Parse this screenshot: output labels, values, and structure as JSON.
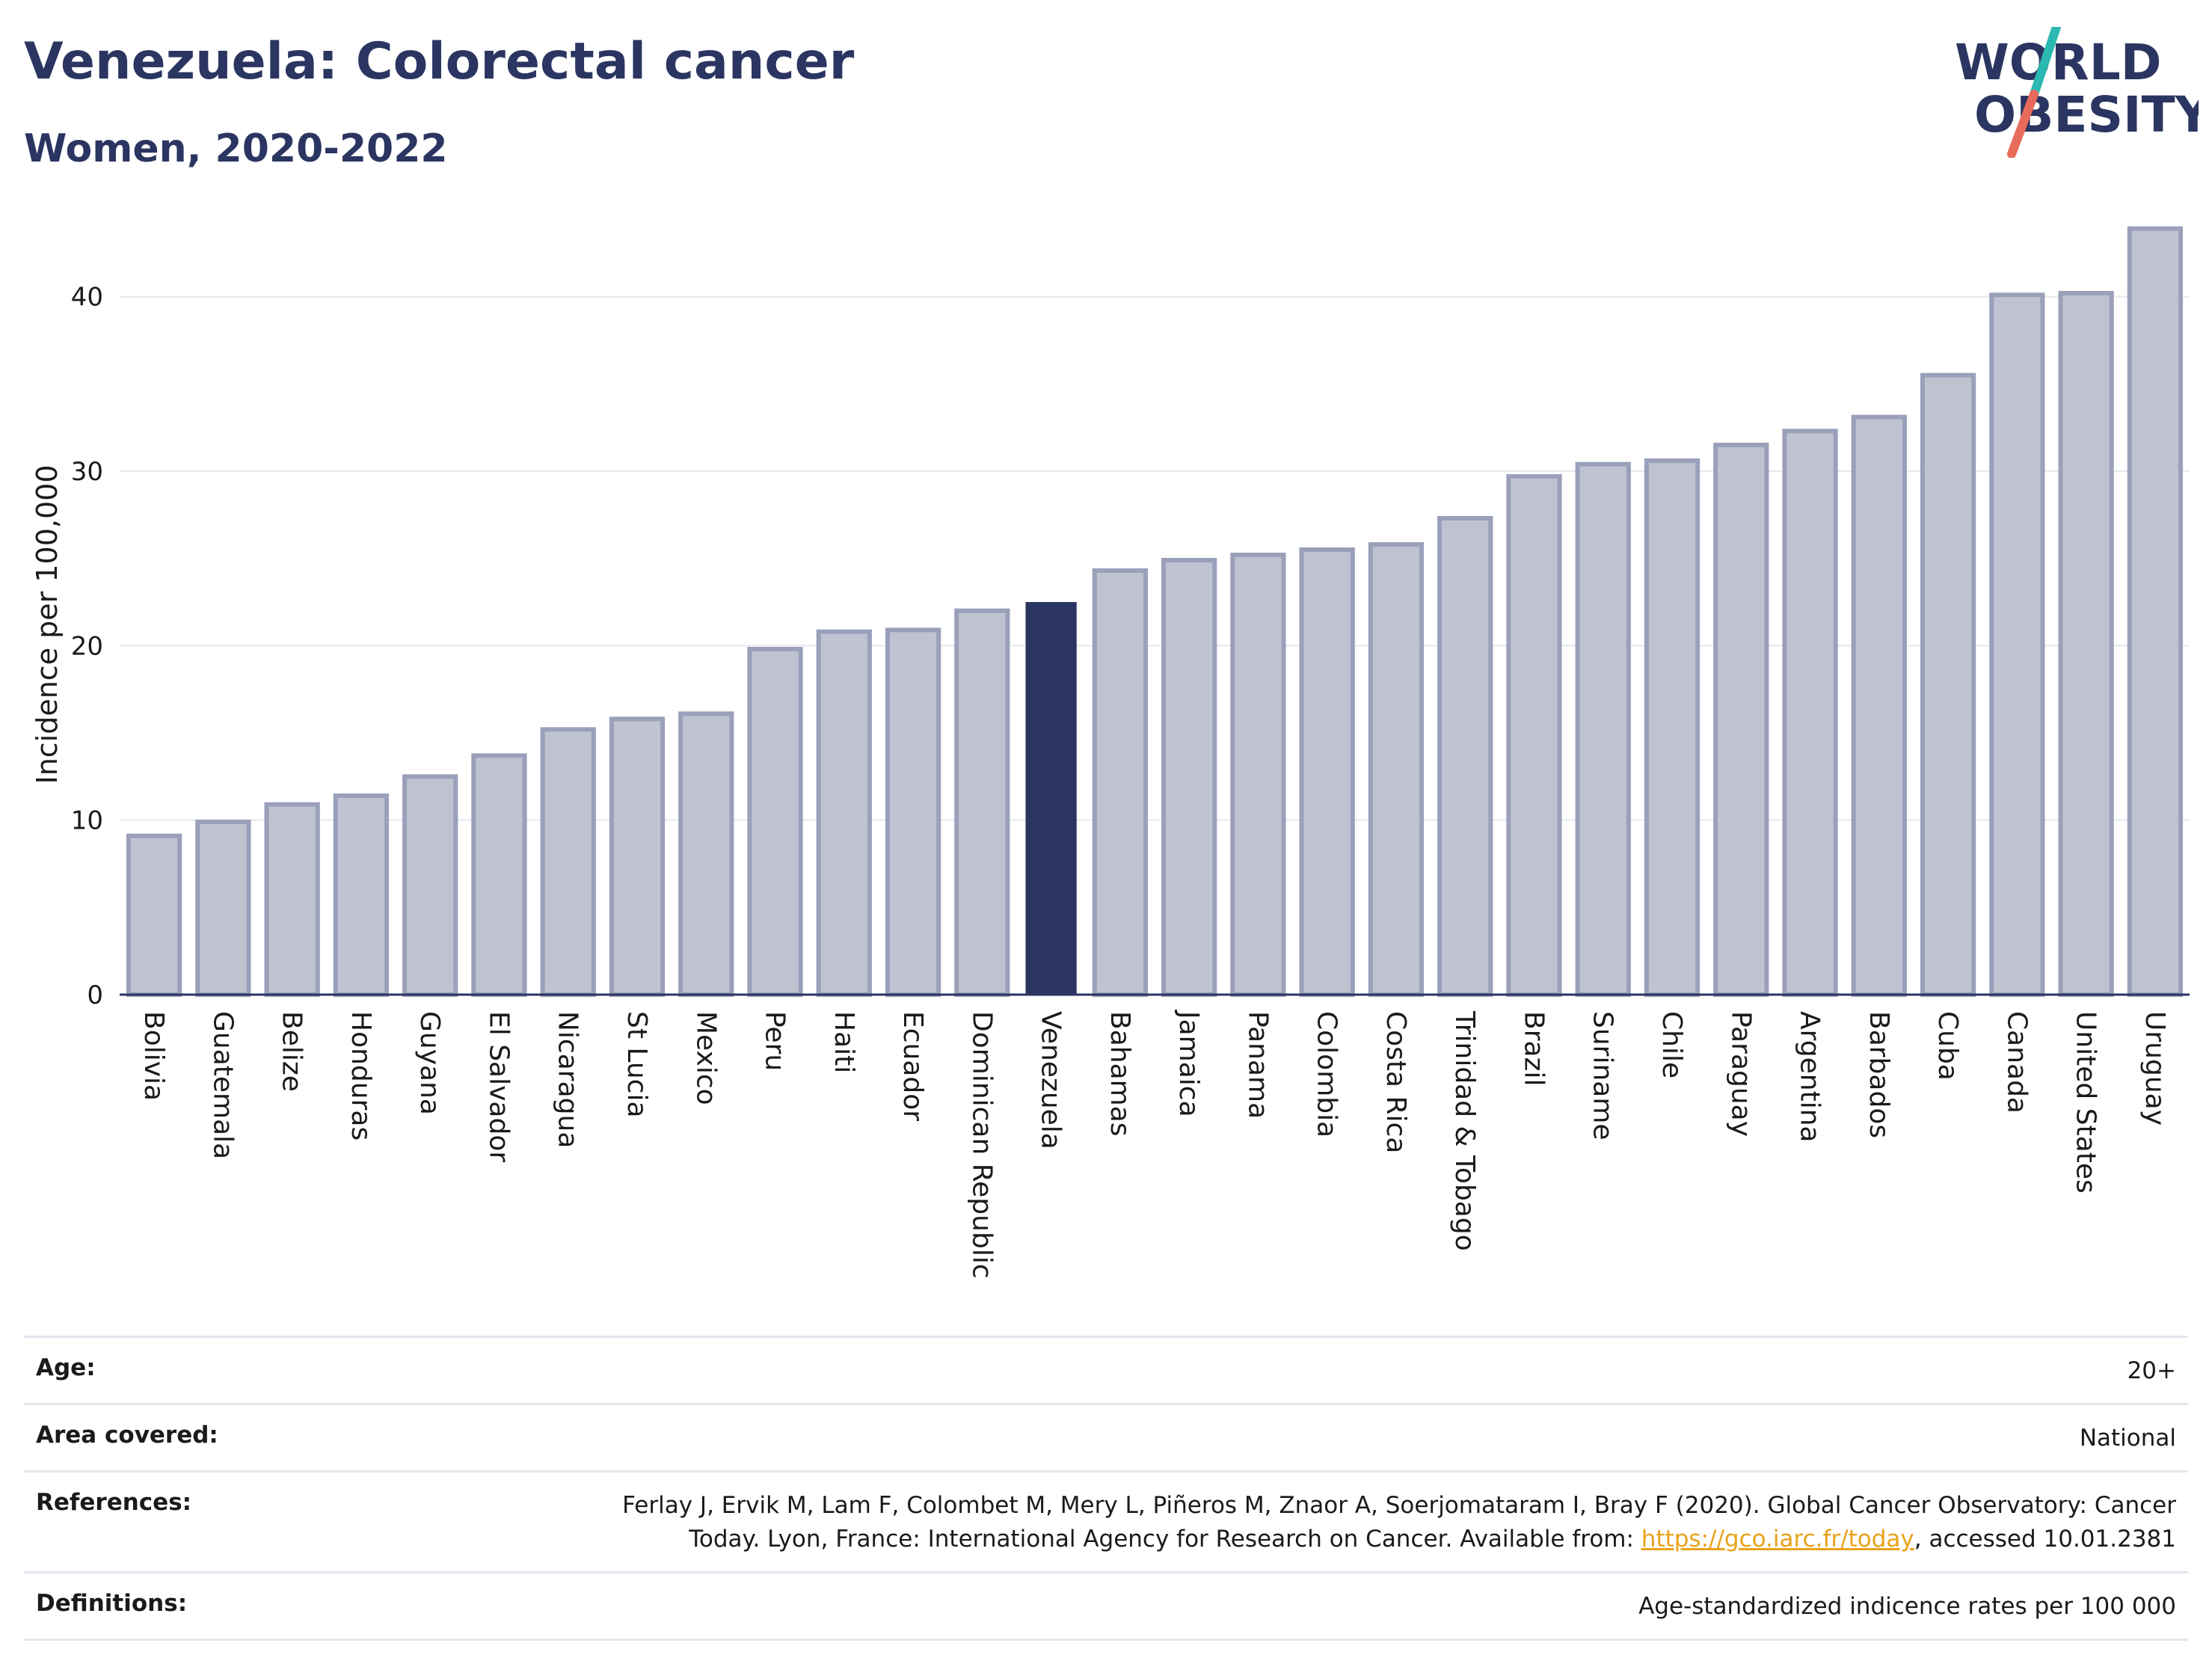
{
  "header": {
    "title": "Venezuela: Colorectal cancer",
    "subtitle": "Women, 2020-2022"
  },
  "logo": {
    "line1": "WORLD",
    "line2": "OBESITY",
    "icon": "world-obesity-logo"
  },
  "colors": {
    "bar": "#bfc3d1",
    "bar_edge": "#9aa0ba",
    "highlight": "#2b3561",
    "title": "#2b3561",
    "link": "#e8a21a"
  },
  "chart_data": {
    "type": "bar",
    "ylabel": "Incidence per 100,000",
    "xlabel": "",
    "ylim": [
      0,
      45
    ],
    "yticks": [
      0,
      10,
      20,
      30,
      40
    ],
    "grid": true,
    "highlight": "Venezuela",
    "categories": [
      "Bolivia",
      "Guatemala",
      "Belize",
      "Honduras",
      "Guyana",
      "El Salvador",
      "Nicaragua",
      "St Lucia",
      "Mexico",
      "Peru",
      "Haiti",
      "Ecuador",
      "Dominican Republic",
      "Venezuela",
      "Bahamas",
      "Jamaica",
      "Panama",
      "Colombia",
      "Costa Rica",
      "Trinidad & Tobago",
      "Brazil",
      "Suriname",
      "Chile",
      "Paraguay",
      "Argentina",
      "Barbados",
      "Cuba",
      "Canada",
      "United States",
      "Uruguay"
    ],
    "values": [
      9.1,
      9.9,
      10.9,
      11.4,
      12.5,
      13.7,
      15.2,
      15.8,
      16.1,
      19.8,
      20.8,
      20.9,
      22.0,
      22.5,
      24.3,
      24.9,
      25.2,
      25.5,
      25.8,
      27.3,
      29.7,
      30.4,
      30.6,
      31.5,
      32.3,
      33.1,
      35.5,
      40.1,
      40.2,
      43.9
    ]
  },
  "meta": {
    "age_label": "Age:",
    "age_value": "20+",
    "area_label": "Area covered:",
    "area_value": "National",
    "references_label": "References:",
    "references_line1": "Ferlay J, Ervik M, Lam F, Colombet M, Mery L, Piñeros M, Znaor A, Soerjomataram I, Bray F (2020). Global Cancer Observatory: Cancer",
    "references_line2_pre": "Today. Lyon, France: International Agency for Research on Cancer. Available from: ",
    "references_link": "https://gco.iarc.fr/today",
    "references_line2_post": ", accessed 10.01.2381",
    "definitions_label": "Definitions:",
    "definitions_value": "Age-standardized indicence rates per 100 000"
  }
}
